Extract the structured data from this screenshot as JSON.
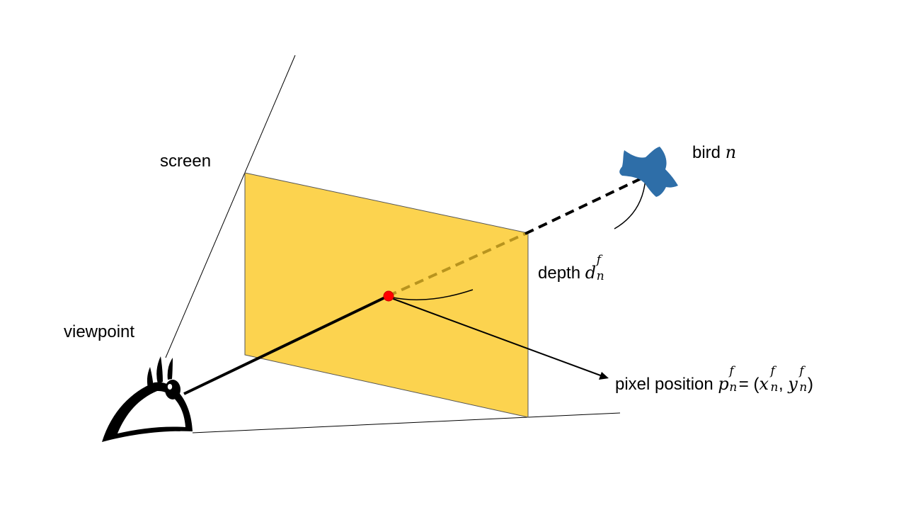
{
  "labels": {
    "screen": "screen",
    "viewpoint": "viewpoint",
    "bird_prefix": "bird ",
    "bird_var": "n",
    "depth_prefix": "depth ",
    "depth_var": "d",
    "depth_sup": "f",
    "depth_sub": "n",
    "pixel_prefix": "pixel position ",
    "p_var": "p",
    "p_sup": "f",
    "p_sub": "n",
    "eq": "= (",
    "x_var": "x",
    "x_sup": "f",
    "x_sub": "n",
    "comma": ", ",
    "y_var": "y",
    "y_sup": "f",
    "y_sub": "n",
    "close": ")"
  },
  "colors": {
    "screen_fill": "#fcd34f",
    "screen_edge": "#555555",
    "bird": "#2e6ea8",
    "dashed_inside": "#b8941e",
    "dashed_outside": "#000000",
    "point": "#ff0000",
    "lines": "#000000"
  },
  "icons": {
    "eye": "eye-icon",
    "bird": "bird-icon"
  }
}
